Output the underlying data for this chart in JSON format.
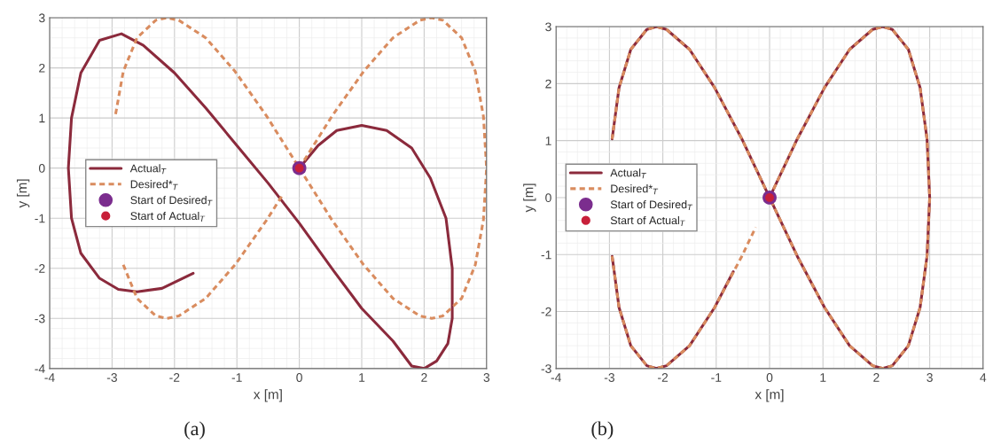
{
  "chart_data": [
    {
      "type": "line",
      "xlabel": "x [m]",
      "ylabel": "y [m]",
      "xlim": [
        -4,
        3
      ],
      "ylim": [
        -4,
        3
      ],
      "xticks": [
        -4,
        -3,
        -2,
        -1,
        0,
        1,
        2,
        3
      ],
      "yticks": [
        -4,
        -3,
        -2,
        -1,
        0,
        1,
        2,
        3
      ],
      "grid": true,
      "legend": "left",
      "annotations": [
        "(a)"
      ],
      "series": [
        {
          "name": "Actual$_{T}$",
          "line_style": "solid",
          "color": "#8b2a3c",
          "x": [
            0,
            0.3,
            0.6,
            1.0,
            1.4,
            1.8,
            2.1,
            2.35,
            2.45,
            2.45,
            2.38,
            2.2,
            2.0,
            1.8,
            1.5,
            1.0,
            0.55,
            0,
            -0.5,
            -1.0,
            -1.5,
            -2.0,
            -2.5,
            -2.85,
            -3.2,
            -3.5,
            -3.65,
            -3.7,
            -3.65,
            -3.5,
            -3.2,
            -2.9,
            -2.6,
            -2.2,
            -1.7
          ],
          "values": [
            0,
            0.45,
            0.75,
            0.85,
            0.75,
            0.4,
            -0.2,
            -1.0,
            -2.0,
            -3.0,
            -3.5,
            -3.85,
            -4.0,
            -3.95,
            -3.45,
            -2.8,
            -2.05,
            -1.1,
            -0.3,
            0.45,
            1.2,
            1.9,
            2.45,
            2.68,
            2.55,
            1.9,
            1.0,
            0,
            -1.0,
            -1.7,
            -2.2,
            -2.42,
            -2.47,
            -2.4,
            -2.1
          ]
        },
        {
          "name": "Desired*$_{T}$",
          "line_style": "dashed",
          "color": "#d98c5f",
          "x": [
            0,
            0.52,
            1.03,
            1.5,
            1.93,
            2.12,
            2.3,
            2.6,
            2.82,
            2.95,
            3,
            2.95,
            2.82,
            2.6,
            2.3,
            2.12,
            1.93,
            1.5,
            1.03,
            0.52,
            0,
            -0.52,
            -1.03,
            -1.5,
            -1.93,
            -2.12,
            -2.3,
            -2.6,
            -2.82,
            -2.95,
            null,
            null,
            -2.82,
            -2.6,
            -2.3,
            -2.12,
            -1.93,
            -1.5,
            -1.03,
            -0.52,
            -0.26
          ],
          "values": [
            0,
            1.03,
            1.93,
            2.6,
            2.95,
            3,
            2.95,
            2.6,
            1.93,
            1.03,
            0,
            -1.03,
            -1.93,
            -2.6,
            -2.95,
            -3,
            -2.95,
            -2.6,
            -1.93,
            -1.03,
            0,
            1.03,
            1.93,
            2.6,
            2.95,
            3,
            2.95,
            2.6,
            1.93,
            1.03,
            null,
            null,
            -1.93,
            -2.6,
            -2.95,
            -3,
            -2.95,
            -2.6,
            -1.93,
            -1.03,
            -0.52
          ]
        },
        {
          "name": "Start of Desired$_{T}$",
          "type": "scatter",
          "marker": "circle",
          "color": "#7b2d8e",
          "x": [
            0
          ],
          "values": [
            0
          ]
        },
        {
          "name": "Start of Actual$_{T}$",
          "type": "scatter",
          "marker": "circle",
          "color": "#c8203a",
          "x": [
            0
          ],
          "values": [
            0
          ]
        }
      ]
    },
    {
      "type": "line",
      "xlabel": "x [m]",
      "ylabel": "y [m]",
      "xlim": [
        -4,
        4
      ],
      "ylim": [
        -3,
        3
      ],
      "xticks": [
        -4,
        -3,
        -2,
        -1,
        0,
        1,
        2,
        3,
        4
      ],
      "yticks": [
        -3,
        -2,
        -1,
        0,
        1,
        2,
        3
      ],
      "grid": true,
      "legend": "left",
      "annotations": [
        "(b)"
      ],
      "series": [
        {
          "name": "Actual$_{T}$",
          "line_style": "solid",
          "color": "#8b2a3c",
          "x": [
            0,
            0.52,
            1.03,
            1.5,
            1.93,
            2.12,
            2.3,
            2.6,
            2.82,
            2.95,
            3,
            2.95,
            2.82,
            2.6,
            2.3,
            2.12,
            1.93,
            1.5,
            1.03,
            0.52,
            0,
            -0.52,
            -1.03,
            -1.5,
            -1.93,
            -2.12,
            -2.3,
            -2.6,
            -2.82,
            -2.95,
            null,
            -2.95,
            -2.82,
            -2.6,
            -2.3,
            -2.12,
            -1.93,
            -1.5,
            -1.03,
            -0.68
          ],
          "values": [
            0,
            1.03,
            1.93,
            2.6,
            2.95,
            3,
            2.95,
            2.6,
            1.93,
            1.03,
            0,
            -1.03,
            -1.93,
            -2.6,
            -2.95,
            -3,
            -2.95,
            -2.6,
            -1.93,
            -1.03,
            0,
            1.03,
            1.93,
            2.6,
            2.95,
            3,
            2.95,
            2.6,
            1.93,
            1.03,
            null,
            -1.03,
            -1.93,
            -2.6,
            -2.95,
            -3,
            -2.95,
            -2.6,
            -1.93,
            -1.3
          ]
        },
        {
          "name": "Desired*$_{T}$",
          "line_style": "dashed",
          "color": "#d98c5f",
          "x": [
            0,
            0.52,
            1.03,
            1.5,
            1.93,
            2.12,
            2.3,
            2.6,
            2.82,
            2.95,
            3,
            2.95,
            2.82,
            2.6,
            2.3,
            2.12,
            1.93,
            1.5,
            1.03,
            0.52,
            0,
            -0.52,
            -1.03,
            -1.5,
            -1.93,
            -2.12,
            -2.3,
            -2.6,
            -2.82,
            -2.95,
            null,
            -2.95,
            -2.82,
            -2.6,
            -2.3,
            -2.12,
            -1.93,
            -1.5,
            -1.03,
            -0.52,
            -0.26
          ],
          "values": [
            0,
            1.03,
            1.93,
            2.6,
            2.95,
            3,
            2.95,
            2.6,
            1.93,
            1.03,
            0,
            -1.03,
            -1.93,
            -2.6,
            -2.95,
            -3,
            -2.95,
            -2.6,
            -1.93,
            -1.03,
            0,
            1.03,
            1.93,
            2.6,
            2.95,
            3,
            2.95,
            2.6,
            1.93,
            1.03,
            null,
            -1.03,
            -1.93,
            -2.6,
            -2.95,
            -3,
            -2.95,
            -2.6,
            -1.93,
            -1.03,
            -0.52
          ]
        },
        {
          "name": "Start of Desired$_{T}$",
          "type": "scatter",
          "marker": "circle",
          "color": "#7b2d8e",
          "x": [
            0
          ],
          "values": [
            0
          ]
        },
        {
          "name": "Start of Actual$_{T}$",
          "type": "scatter",
          "marker": "circle",
          "color": "#c8203a",
          "x": [
            0
          ],
          "values": [
            0
          ]
        }
      ]
    }
  ]
}
